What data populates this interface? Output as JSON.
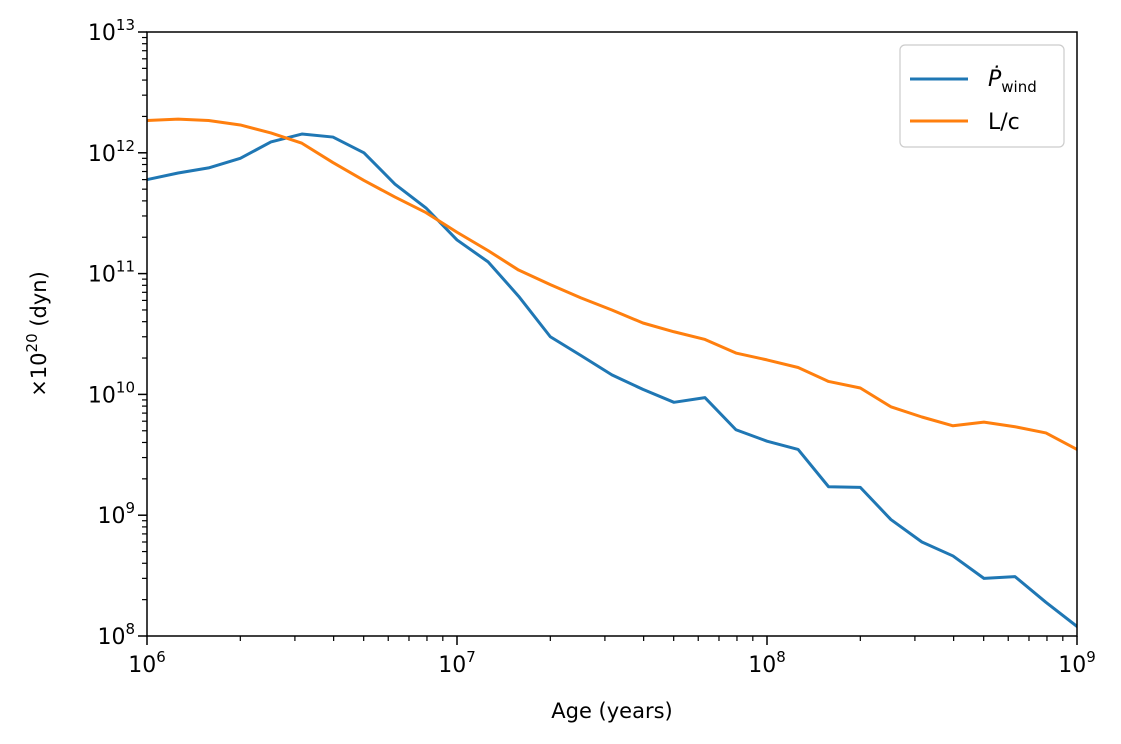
{
  "chart_data": {
    "type": "line",
    "xscale": "log",
    "yscale": "log",
    "xlim": [
      1000000,
      1000000000
    ],
    "ylim": [
      100000000,
      10000000000000
    ],
    "xlabel": "Age (years)",
    "ylabel": {
      "prefix": "×10",
      "exponent": "20",
      "suffix": " (dyn)"
    },
    "legend_position": "top-right",
    "x_ticks": [
      {
        "base": "10",
        "exp": "6",
        "value": 1000000
      },
      {
        "base": "10",
        "exp": "7",
        "value": 10000000
      },
      {
        "base": "10",
        "exp": "8",
        "value": 100000000
      },
      {
        "base": "10",
        "exp": "9",
        "value": 1000000000
      }
    ],
    "y_ticks": [
      {
        "base": "10",
        "exp": "8",
        "value": 100000000
      },
      {
        "base": "10",
        "exp": "9",
        "value": 1000000000
      },
      {
        "base": "10",
        "exp": "10",
        "value": 10000000000
      },
      {
        "base": "10",
        "exp": "11",
        "value": 100000000000
      },
      {
        "base": "10",
        "exp": "12",
        "value": 1000000000000
      },
      {
        "base": "10",
        "exp": "13",
        "value": 10000000000000
      }
    ],
    "series": [
      {
        "name": "P_wind",
        "legend": {
          "main": "Ṗ",
          "sub": "wind"
        },
        "color": "#1f77b4",
        "points": [
          [
            1000000,
            600000000000
          ],
          [
            1260000,
            680000000000
          ],
          [
            1580000,
            750000000000
          ],
          [
            2000000,
            900000000000
          ],
          [
            2510000,
            1230000000000
          ],
          [
            3160000,
            1430000000000
          ],
          [
            3980000,
            1350000000000
          ],
          [
            5010000,
            1000000000000
          ],
          [
            6310000,
            550000000000
          ],
          [
            7940000,
            350000000000
          ],
          [
            10000000,
            190000000000
          ],
          [
            12600000,
            125000000000
          ],
          [
            15800000,
            65000000000
          ],
          [
            20000000,
            30000000000
          ],
          [
            25100000,
            21000000000
          ],
          [
            31600000,
            14500000000
          ],
          [
            39800000,
            11000000000
          ],
          [
            50100000,
            8600000000
          ],
          [
            63100000,
            9400000000
          ],
          [
            79400000,
            5100000000
          ],
          [
            100000000,
            4100000000
          ],
          [
            126000000,
            3500000000
          ],
          [
            158000000,
            1720000000
          ],
          [
            200000000,
            1700000000
          ],
          [
            251000000,
            920000000
          ],
          [
            316000000,
            600000000
          ],
          [
            398000000,
            460000000
          ],
          [
            501000000,
            300000000
          ],
          [
            631000000,
            310000000
          ],
          [
            794000000,
            190000000
          ],
          [
            1000000000,
            120000000
          ]
        ]
      },
      {
        "name": "L/c",
        "legend": {
          "main": "L/c",
          "sub": ""
        },
        "color": "#ff7f0e",
        "points": [
          [
            1000000,
            1850000000000
          ],
          [
            1260000,
            1900000000000
          ],
          [
            1580000,
            1850000000000
          ],
          [
            2000000,
            1700000000000
          ],
          [
            2510000,
            1460000000000
          ],
          [
            3160000,
            1200000000000
          ],
          [
            3980000,
            830000000000
          ],
          [
            5010000,
            590000000000
          ],
          [
            6310000,
            430000000000
          ],
          [
            7940000,
            320000000000
          ],
          [
            10000000,
            220000000000
          ],
          [
            12600000,
            155000000000
          ],
          [
            15800000,
            107000000000
          ],
          [
            20000000,
            81000000000
          ],
          [
            25100000,
            63000000000
          ],
          [
            31600000,
            50000000000
          ],
          [
            39800000,
            39000000000
          ],
          [
            50100000,
            33000000000
          ],
          [
            63100000,
            28500000000
          ],
          [
            79400000,
            22000000000
          ],
          [
            100000000,
            19300000000
          ],
          [
            126000000,
            16700000000
          ],
          [
            158000000,
            12800000000
          ],
          [
            200000000,
            11300000000
          ],
          [
            251000000,
            7900000000
          ],
          [
            316000000,
            6500000000
          ],
          [
            398000000,
            5500000000
          ],
          [
            501000000,
            5900000000
          ],
          [
            631000000,
            5400000000
          ],
          [
            794000000,
            4800000000
          ],
          [
            1000000000,
            3500000000
          ]
        ]
      }
    ]
  }
}
